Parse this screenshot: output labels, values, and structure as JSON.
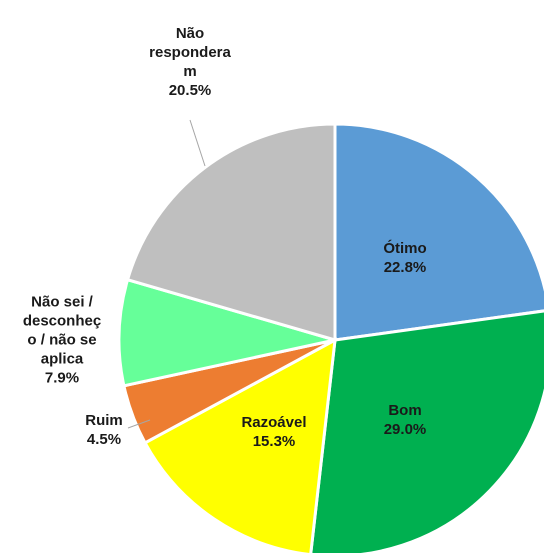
{
  "chart_data": {
    "type": "pie",
    "categories": [
      "Ótimo",
      "Bom",
      "Razoável",
      "Ruim",
      "Não sei / desconheço / não se aplica",
      "Não responderam"
    ],
    "values": [
      22.8,
      29.0,
      15.3,
      4.5,
      7.9,
      20.5
    ],
    "value_labels": [
      "22.8%",
      "29.0%",
      "15.3%",
      "4.5%",
      "7.9%",
      "20.5%"
    ],
    "colors": [
      "#5b9bd5",
      "#00b050",
      "#ffff00",
      "#ed7d31",
      "#66ff99",
      "#bfbfbf"
    ]
  }
}
